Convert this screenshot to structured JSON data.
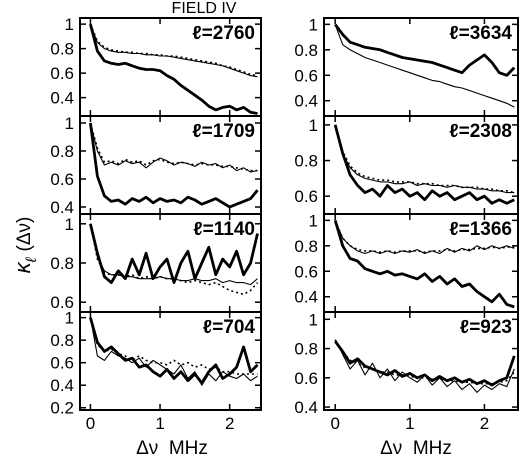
{
  "figure_title": "FIELD IV",
  "y_axis_title_main": "κ",
  "y_axis_title_sub": "ℓ",
  "y_axis_title_arg": "(Δν)",
  "x_axis_title": "Δν  MHz",
  "chart_data": [
    {
      "type": "line",
      "panel": "left-1",
      "label": "ℓ=2760",
      "ylim": [
        0.25,
        1.05
      ],
      "yticks": [
        1,
        0.8,
        0.6,
        0.4
      ],
      "xlim": [
        -0.15,
        2.45
      ],
      "xticks": [
        0,
        1,
        2
      ],
      "x": [
        0,
        0.1,
        0.2,
        0.3,
        0.4,
        0.5,
        0.6,
        0.7,
        0.8,
        0.9,
        1.0,
        1.1,
        1.2,
        1.3,
        1.4,
        1.5,
        1.6,
        1.7,
        1.8,
        1.9,
        2.0,
        2.1,
        2.2,
        2.3,
        2.4
      ],
      "series": [
        {
          "style": "thick",
          "values": [
            1.0,
            0.78,
            0.7,
            0.68,
            0.67,
            0.68,
            0.66,
            0.64,
            0.63,
            0.63,
            0.62,
            0.58,
            0.55,
            0.5,
            0.46,
            0.42,
            0.38,
            0.33,
            0.3,
            0.32,
            0.33,
            0.3,
            0.32,
            0.28,
            0.27
          ]
        },
        {
          "style": "thin",
          "values": [
            1.0,
            0.85,
            0.8,
            0.78,
            0.77,
            0.77,
            0.76,
            0.76,
            0.75,
            0.75,
            0.74,
            0.74,
            0.73,
            0.72,
            0.71,
            0.7,
            0.69,
            0.68,
            0.67,
            0.66,
            0.64,
            0.62,
            0.6,
            0.58,
            0.57
          ]
        },
        {
          "style": "dotted",
          "values": [
            1.0,
            0.86,
            0.81,
            0.79,
            0.78,
            0.77,
            0.77,
            0.76,
            0.76,
            0.75,
            0.75,
            0.74,
            0.74,
            0.73,
            0.72,
            0.71,
            0.7,
            0.69,
            0.68,
            0.66,
            0.65,
            0.63,
            0.61,
            0.59,
            0.58
          ]
        }
      ]
    },
    {
      "type": "line",
      "panel": "left-2",
      "label": "ℓ=1709",
      "ylim": [
        0.35,
        1.05
      ],
      "yticks": [
        1,
        0.8,
        0.6,
        0.4
      ],
      "xlim": [
        -0.15,
        2.45
      ],
      "xticks": [
        0,
        1,
        2
      ],
      "x": [
        0,
        0.1,
        0.2,
        0.3,
        0.4,
        0.5,
        0.6,
        0.7,
        0.8,
        0.9,
        1.0,
        1.1,
        1.2,
        1.3,
        1.4,
        1.5,
        1.6,
        1.7,
        1.8,
        1.9,
        2.0,
        2.1,
        2.2,
        2.3,
        2.4
      ],
      "series": [
        {
          "style": "thick",
          "values": [
            1.0,
            0.62,
            0.48,
            0.44,
            0.45,
            0.42,
            0.46,
            0.44,
            0.47,
            0.43,
            0.46,
            0.44,
            0.45,
            0.43,
            0.47,
            0.45,
            0.42,
            0.44,
            0.46,
            0.43,
            0.4,
            0.42,
            0.44,
            0.46,
            0.52
          ]
        },
        {
          "style": "thin",
          "values": [
            1.0,
            0.8,
            0.7,
            0.72,
            0.7,
            0.73,
            0.71,
            0.72,
            0.68,
            0.72,
            0.75,
            0.73,
            0.7,
            0.72,
            0.71,
            0.69,
            0.72,
            0.7,
            0.71,
            0.68,
            0.7,
            0.66,
            0.68,
            0.65,
            0.66
          ]
        },
        {
          "style": "dotted",
          "values": [
            1.0,
            0.82,
            0.72,
            0.73,
            0.71,
            0.74,
            0.72,
            0.73,
            0.7,
            0.73,
            0.74,
            0.72,
            0.71,
            0.72,
            0.71,
            0.7,
            0.71,
            0.7,
            0.7,
            0.69,
            0.69,
            0.68,
            0.67,
            0.66,
            0.66
          ]
        }
      ]
    },
    {
      "type": "line",
      "panel": "left-3",
      "label": "ℓ=1140",
      "ylim": [
        0.55,
        1.05
      ],
      "yticks": [
        1,
        0.8,
        0.6
      ],
      "xlim": [
        -0.15,
        2.45
      ],
      "xticks": [
        0,
        1,
        2
      ],
      "x": [
        0,
        0.1,
        0.2,
        0.3,
        0.4,
        0.5,
        0.6,
        0.7,
        0.8,
        0.9,
        1.0,
        1.1,
        1.2,
        1.3,
        1.4,
        1.5,
        1.6,
        1.7,
        1.8,
        1.9,
        2.0,
        2.1,
        2.2,
        2.3,
        2.4
      ],
      "series": [
        {
          "style": "thick",
          "values": [
            1.0,
            0.85,
            0.73,
            0.7,
            0.76,
            0.72,
            0.82,
            0.74,
            0.85,
            0.72,
            0.78,
            0.82,
            0.7,
            0.8,
            0.86,
            0.72,
            0.8,
            0.88,
            0.74,
            0.82,
            0.78,
            0.86,
            0.74,
            0.8,
            0.95
          ]
        },
        {
          "style": "thin",
          "values": [
            1.0,
            0.83,
            0.76,
            0.74,
            0.74,
            0.73,
            0.73,
            0.72,
            0.72,
            0.72,
            0.73,
            0.72,
            0.72,
            0.71,
            0.71,
            0.72,
            0.71,
            0.71,
            0.72,
            0.7,
            0.71,
            0.7,
            0.7,
            0.69,
            0.72
          ]
        },
        {
          "style": "dotted",
          "values": [
            1.0,
            0.82,
            0.75,
            0.74,
            0.74,
            0.73,
            0.74,
            0.72,
            0.73,
            0.72,
            0.73,
            0.72,
            0.72,
            0.71,
            0.7,
            0.71,
            0.7,
            0.69,
            0.7,
            0.68,
            0.66,
            0.65,
            0.64,
            0.66,
            0.7
          ]
        }
      ]
    },
    {
      "type": "line",
      "panel": "left-4",
      "label": "ℓ=704",
      "ylim": [
        0.18,
        1.05
      ],
      "yticks": [
        1,
        0.8,
        0.6,
        0.4,
        0.2
      ],
      "xlim": [
        -0.15,
        2.45
      ],
      "xticks": [
        0,
        1,
        2
      ],
      "x": [
        0,
        0.1,
        0.2,
        0.3,
        0.4,
        0.5,
        0.6,
        0.7,
        0.8,
        0.9,
        1.0,
        1.1,
        1.2,
        1.3,
        1.4,
        1.5,
        1.6,
        1.7,
        1.8,
        1.9,
        2.0,
        2.1,
        2.2,
        2.3,
        2.4
      ],
      "series": [
        {
          "style": "thick",
          "values": [
            1.0,
            0.78,
            0.7,
            0.74,
            0.68,
            0.62,
            0.64,
            0.56,
            0.58,
            0.52,
            0.48,
            0.54,
            0.46,
            0.52,
            0.44,
            0.5,
            0.42,
            0.52,
            0.58,
            0.46,
            0.5,
            0.56,
            0.74,
            0.52,
            0.58
          ]
        },
        {
          "style": "thin",
          "values": [
            1.0,
            0.66,
            0.62,
            0.7,
            0.66,
            0.64,
            0.6,
            0.64,
            0.56,
            0.62,
            0.58,
            0.54,
            0.5,
            0.58,
            0.46,
            0.52,
            0.4,
            0.5,
            0.44,
            0.52,
            0.48,
            0.46,
            0.5,
            0.44,
            0.48
          ]
        },
        {
          "style": "dotted",
          "values": [
            1.0,
            0.76,
            0.7,
            0.72,
            0.68,
            0.66,
            0.62,
            0.66,
            0.62,
            0.6,
            0.6,
            0.58,
            0.62,
            0.58,
            0.6,
            0.56,
            0.58,
            0.54,
            0.56,
            0.52,
            0.52,
            0.5,
            0.5,
            0.5,
            0.5
          ]
        }
      ]
    },
    {
      "type": "line",
      "panel": "right-1",
      "label": "ℓ=3634",
      "ylim": [
        0.28,
        1.05
      ],
      "yticks": [
        1,
        0.8,
        0.6,
        0.4
      ],
      "xlim": [
        -0.15,
        2.45
      ],
      "xticks": [
        0,
        1,
        2
      ],
      "x": [
        0,
        0.1,
        0.2,
        0.3,
        0.4,
        0.5,
        0.6,
        0.7,
        0.8,
        0.9,
        1.0,
        1.1,
        1.2,
        1.3,
        1.4,
        1.5,
        1.6,
        1.7,
        1.8,
        1.9,
        2.0,
        2.1,
        2.2,
        2.3,
        2.4
      ],
      "series": [
        {
          "style": "thick",
          "values": [
            1.0,
            0.92,
            0.86,
            0.84,
            0.82,
            0.81,
            0.8,
            0.78,
            0.76,
            0.74,
            0.73,
            0.72,
            0.71,
            0.7,
            0.68,
            0.66,
            0.64,
            0.62,
            0.68,
            0.72,
            0.76,
            0.7,
            0.62,
            0.6,
            0.66
          ]
        },
        {
          "style": "thin",
          "values": [
            1.0,
            0.84,
            0.8,
            0.77,
            0.74,
            0.72,
            0.7,
            0.68,
            0.66,
            0.64,
            0.62,
            0.6,
            0.58,
            0.56,
            0.55,
            0.53,
            0.51,
            0.5,
            0.48,
            0.46,
            0.44,
            0.42,
            0.4,
            0.38,
            0.35
          ]
        }
      ]
    },
    {
      "type": "line",
      "panel": "right-2",
      "label": "ℓ=2308",
      "ylim": [
        0.5,
        1.05
      ],
      "yticks": [
        1,
        0.8,
        0.6
      ],
      "xlim": [
        -0.15,
        2.45
      ],
      "xticks": [
        0,
        1,
        2
      ],
      "x": [
        0,
        0.1,
        0.2,
        0.3,
        0.4,
        0.5,
        0.6,
        0.7,
        0.8,
        0.9,
        1.0,
        1.1,
        1.2,
        1.3,
        1.4,
        1.5,
        1.6,
        1.7,
        1.8,
        1.9,
        2.0,
        2.1,
        2.2,
        2.3,
        2.4
      ],
      "series": [
        {
          "style": "thick",
          "values": [
            1.0,
            0.84,
            0.72,
            0.66,
            0.62,
            0.64,
            0.6,
            0.66,
            0.62,
            0.64,
            0.6,
            0.62,
            0.58,
            0.63,
            0.6,
            0.62,
            0.58,
            0.6,
            0.62,
            0.58,
            0.6,
            0.56,
            0.58,
            0.56,
            0.58
          ]
        },
        {
          "style": "thin",
          "values": [
            1.0,
            0.84,
            0.76,
            0.72,
            0.7,
            0.69,
            0.68,
            0.68,
            0.67,
            0.67,
            0.68,
            0.66,
            0.67,
            0.66,
            0.66,
            0.65,
            0.66,
            0.65,
            0.65,
            0.64,
            0.64,
            0.63,
            0.63,
            0.62,
            0.62
          ]
        },
        {
          "style": "dotted",
          "values": [
            1.0,
            0.85,
            0.77,
            0.73,
            0.71,
            0.7,
            0.69,
            0.69,
            0.68,
            0.68,
            0.68,
            0.67,
            0.67,
            0.67,
            0.66,
            0.66,
            0.66,
            0.65,
            0.65,
            0.65,
            0.64,
            0.64,
            0.63,
            0.63,
            0.62
          ]
        }
      ]
    },
    {
      "type": "line",
      "panel": "right-3",
      "label": "ℓ=1366",
      "ylim": [
        0.28,
        1.05
      ],
      "yticks": [
        1,
        0.8,
        0.6,
        0.4
      ],
      "xlim": [
        -0.15,
        2.45
      ],
      "xticks": [
        0,
        1,
        2
      ],
      "x": [
        0,
        0.1,
        0.2,
        0.3,
        0.4,
        0.5,
        0.6,
        0.7,
        0.8,
        0.9,
        1.0,
        1.1,
        1.2,
        1.3,
        1.4,
        1.5,
        1.6,
        1.7,
        1.8,
        1.9,
        2.0,
        2.1,
        2.2,
        2.3,
        2.4
      ],
      "series": [
        {
          "style": "thick",
          "values": [
            1.0,
            0.8,
            0.7,
            0.68,
            0.62,
            0.6,
            0.58,
            0.6,
            0.57,
            0.58,
            0.56,
            0.54,
            0.58,
            0.52,
            0.56,
            0.5,
            0.54,
            0.48,
            0.5,
            0.44,
            0.4,
            0.36,
            0.42,
            0.34,
            0.32
          ]
        },
        {
          "style": "thin",
          "values": [
            1.0,
            0.86,
            0.8,
            0.76,
            0.74,
            0.76,
            0.74,
            0.76,
            0.74,
            0.76,
            0.75,
            0.77,
            0.74,
            0.76,
            0.74,
            0.78,
            0.75,
            0.78,
            0.76,
            0.8,
            0.77,
            0.8,
            0.78,
            0.8,
            0.78
          ]
        },
        {
          "style": "dotted",
          "values": [
            1.0,
            0.86,
            0.8,
            0.77,
            0.76,
            0.76,
            0.75,
            0.76,
            0.75,
            0.76,
            0.76,
            0.76,
            0.75,
            0.76,
            0.76,
            0.77,
            0.76,
            0.77,
            0.77,
            0.78,
            0.78,
            0.79,
            0.78,
            0.79,
            0.79
          ]
        }
      ]
    },
    {
      "type": "line",
      "panel": "right-4",
      "label": "ℓ=923",
      "ylim": [
        0.38,
        1.05
      ],
      "yticks": [
        1,
        0.8,
        0.6,
        0.4
      ],
      "xlim": [
        -0.15,
        2.45
      ],
      "xticks": [
        0,
        1,
        2
      ],
      "x": [
        0,
        0.1,
        0.2,
        0.3,
        0.4,
        0.5,
        0.6,
        0.7,
        0.8,
        0.9,
        1.0,
        1.1,
        1.2,
        1.3,
        1.4,
        1.5,
        1.6,
        1.7,
        1.8,
        1.9,
        2.0,
        2.1,
        2.2,
        2.3,
        2.4
      ],
      "series": [
        {
          "style": "thick",
          "values": [
            0.85,
            0.78,
            0.7,
            0.73,
            0.68,
            0.66,
            0.64,
            0.62,
            0.65,
            0.61,
            0.63,
            0.6,
            0.62,
            0.58,
            0.61,
            0.58,
            0.6,
            0.57,
            0.59,
            0.56,
            0.58,
            0.55,
            0.58,
            0.6,
            0.75
          ]
        },
        {
          "style": "thin",
          "values": [
            0.86,
            0.76,
            0.66,
            0.72,
            0.62,
            0.7,
            0.6,
            0.66,
            0.58,
            0.64,
            0.6,
            0.57,
            0.62,
            0.55,
            0.6,
            0.54,
            0.58,
            0.52,
            0.56,
            0.5,
            0.55,
            0.52,
            0.56,
            0.54,
            0.66
          ]
        },
        {
          "style": "dotted",
          "values": [
            0.86,
            0.78,
            0.72,
            0.7,
            0.67,
            0.66,
            0.64,
            0.64,
            0.62,
            0.62,
            0.61,
            0.6,
            0.6,
            0.59,
            0.59,
            0.58,
            0.58,
            0.57,
            0.57,
            0.56,
            0.56,
            0.56,
            0.57,
            0.58,
            0.64
          ]
        }
      ]
    }
  ]
}
